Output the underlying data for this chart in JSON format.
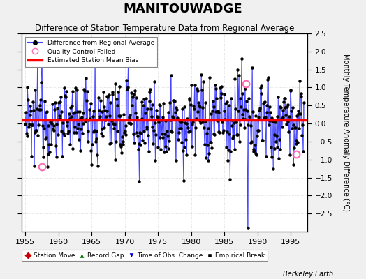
{
  "title": "MANITOUWADGE",
  "subtitle": "Difference of Station Temperature Data from Regional Average",
  "ylabel": "Monthly Temperature Anomaly Difference (°C)",
  "xlabel_ticks": [
    1955,
    1960,
    1965,
    1970,
    1975,
    1980,
    1985,
    1990,
    1995
  ],
  "ylim": [
    -3.0,
    2.5
  ],
  "yticks": [
    -2.5,
    -2,
    -1.5,
    -1,
    -0.5,
    0,
    0.5,
    1,
    1.5,
    2,
    2.5
  ],
  "xlim": [
    1954.5,
    1997.5
  ],
  "mean_bias": 0.1,
  "line_color": "#4444ff",
  "stem_color": "#8888ff",
  "dot_color": "#000000",
  "bias_color": "#ff0000",
  "qc_color": "#ff69b4",
  "background_color": "#f0f0f0",
  "plot_bg_color": "#ffffff",
  "title_fontsize": 13,
  "subtitle_fontsize": 8.5,
  "seed": 12345,
  "qc_points": [
    [
      1957.5,
      -1.2
    ],
    [
      1988.25,
      1.1
    ],
    [
      1995.75,
      -0.85
    ]
  ],
  "big_dip_time": 1988.5,
  "big_dip_val": -2.9
}
